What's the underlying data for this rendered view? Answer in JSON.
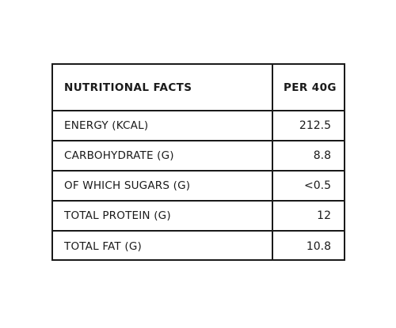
{
  "table": {
    "header": {
      "label": "NUTRITIONAL FACTS",
      "value": "PER 40G"
    },
    "rows": [
      {
        "label": "ENERGY (KCAL)",
        "value": "212.5"
      },
      {
        "label": "CARBOHYDRATE (G)",
        "value": "8.8"
      },
      {
        "label": "OF WHICH SUGARS (G)",
        "value": "<0.5"
      },
      {
        "label": "TOTAL PROTEIN (G)",
        "value": "12"
      },
      {
        "label": "TOTAL FAT (G)",
        "value": "10.8"
      }
    ]
  }
}
